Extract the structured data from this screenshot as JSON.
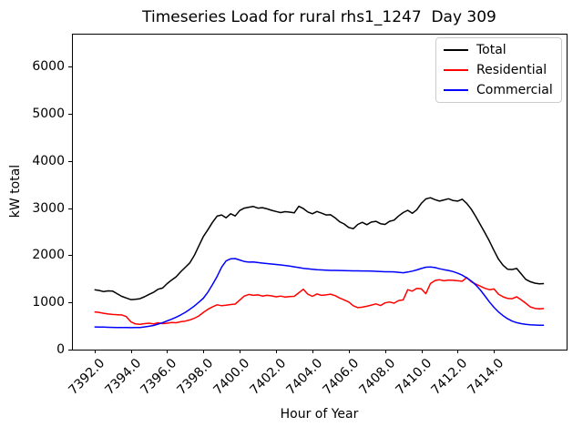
{
  "title": "Timeseries Load for rural rhs1_1247  Day 309",
  "xlabel": "Hour of Year",
  "ylabel": "kW total",
  "legend": {
    "position": "upper right",
    "entries": [
      {
        "label": "Total",
        "color": "#000000"
      },
      {
        "label": "Residential",
        "color": "#ff0000"
      },
      {
        "label": "Commercial",
        "color": "#0000ff"
      }
    ]
  },
  "axes": {
    "xlim": [
      7390.76,
      7418.0
    ],
    "ylim": [
      0,
      6700
    ],
    "grid": false,
    "xticks": [
      7392,
      7394,
      7396,
      7398,
      7400,
      7402,
      7404,
      7406,
      7408,
      7410,
      7412,
      7414
    ],
    "xtick_labels": [
      "7392.0",
      "7394.0",
      "7396.0",
      "7398.0",
      "7400.0",
      "7402.0",
      "7404.0",
      "7406.0",
      "7408.0",
      "7410.0",
      "7412.0",
      "7414.0"
    ],
    "yticks": [
      0,
      1000,
      2000,
      3000,
      4000,
      5000,
      6000
    ],
    "ytick_labels": [
      "0",
      "1000",
      "2000",
      "3000",
      "4000",
      "5000",
      "6000"
    ]
  },
  "chart_data": {
    "type": "line",
    "title": "Timeseries Load for rural rhs1_1247  Day 309",
    "xlabel": "Hour of Year",
    "ylabel": "kW total",
    "x": [
      7392.0,
      7392.25,
      7392.5,
      7392.75,
      7393.0,
      7393.25,
      7393.5,
      7393.75,
      7394.0,
      7394.25,
      7394.5,
      7394.75,
      7395.0,
      7395.25,
      7395.5,
      7395.75,
      7396.0,
      7396.25,
      7396.5,
      7396.75,
      7397.0,
      7397.25,
      7397.5,
      7397.75,
      7398.0,
      7398.25,
      7398.5,
      7398.75,
      7399.0,
      7399.25,
      7399.5,
      7399.75,
      7400.0,
      7400.25,
      7400.5,
      7400.75,
      7401.0,
      7401.25,
      7401.5,
      7401.75,
      7402.0,
      7402.25,
      7402.5,
      7402.75,
      7403.0,
      7403.25,
      7403.5,
      7403.75,
      7404.0,
      7404.25,
      7404.5,
      7404.75,
      7405.0,
      7405.25,
      7405.5,
      7405.75,
      7406.0,
      7406.25,
      7406.5,
      7406.75,
      7407.0,
      7407.25,
      7407.5,
      7407.75,
      7408.0,
      7408.25,
      7408.5,
      7408.75,
      7409.0,
      7409.25,
      7409.5,
      7409.75,
      7410.0,
      7410.25,
      7410.5,
      7410.75,
      7411.0,
      7411.25,
      7411.5,
      7411.75,
      7412.0,
      7412.25,
      7412.5,
      7412.75,
      7413.0,
      7413.25,
      7413.5,
      7413.75,
      7414.0,
      7414.25,
      7414.5,
      7414.75,
      7415.0,
      7415.25,
      7415.5,
      7415.75,
      7416.0,
      7416.25,
      7416.5,
      7416.75
    ],
    "series": [
      {
        "name": "Total",
        "color": "#000000",
        "values": [
          1270,
          1255,
          1230,
          1245,
          1240,
          1185,
          1130,
          1095,
          1060,
          1065,
          1080,
          1120,
          1170,
          1215,
          1280,
          1305,
          1400,
          1475,
          1545,
          1650,
          1745,
          1840,
          2000,
          2200,
          2400,
          2545,
          2700,
          2830,
          2855,
          2795,
          2880,
          2835,
          2950,
          3000,
          3020,
          3035,
          3000,
          3010,
          2985,
          2955,
          2930,
          2905,
          2925,
          2915,
          2900,
          3040,
          2990,
          2920,
          2880,
          2930,
          2895,
          2855,
          2860,
          2795,
          2710,
          2665,
          2590,
          2565,
          2655,
          2700,
          2650,
          2705,
          2720,
          2670,
          2655,
          2720,
          2745,
          2835,
          2905,
          2955,
          2890,
          2965,
          3100,
          3195,
          3220,
          3180,
          3150,
          3175,
          3200,
          3160,
          3150,
          3190,
          3100,
          2980,
          2820,
          2650,
          2480,
          2300,
          2100,
          1920,
          1790,
          1705,
          1700,
          1720,
          1605,
          1490,
          1440,
          1410,
          1395,
          1400
        ]
      },
      {
        "name": "Residential",
        "color": "#ff0000",
        "values": [
          800,
          790,
          770,
          755,
          745,
          740,
          735,
          700,
          590,
          545,
          535,
          550,
          560,
          545,
          570,
          550,
          560,
          575,
          570,
          590,
          605,
          630,
          665,
          715,
          790,
          855,
          905,
          950,
          930,
          940,
          955,
          965,
          1050,
          1135,
          1170,
          1150,
          1160,
          1135,
          1150,
          1140,
          1120,
          1135,
          1115,
          1125,
          1130,
          1205,
          1280,
          1175,
          1130,
          1180,
          1150,
          1160,
          1175,
          1145,
          1095,
          1055,
          1010,
          930,
          890,
          900,
          920,
          945,
          970,
          935,
          990,
          1010,
          985,
          1040,
          1055,
          1270,
          1240,
          1300,
          1290,
          1185,
          1400,
          1465,
          1480,
          1460,
          1475,
          1470,
          1460,
          1450,
          1530,
          1440,
          1390,
          1345,
          1300,
          1270,
          1285,
          1175,
          1120,
          1085,
          1080,
          1120,
          1055,
          985,
          905,
          875,
          865,
          870
        ]
      },
      {
        "name": "Commercial",
        "color": "#0000ff",
        "values": [
          480,
          478,
          476,
          474,
          472,
          470,
          468,
          467,
          466,
          467,
          470,
          480,
          495,
          512,
          540,
          572,
          608,
          645,
          688,
          735,
          790,
          855,
          925,
          1005,
          1090,
          1220,
          1380,
          1550,
          1750,
          1880,
          1925,
          1930,
          1900,
          1870,
          1855,
          1860,
          1845,
          1835,
          1825,
          1815,
          1805,
          1795,
          1785,
          1770,
          1755,
          1740,
          1725,
          1715,
          1705,
          1695,
          1690,
          1685,
          1680,
          1680,
          1678,
          1676,
          1672,
          1670,
          1670,
          1668,
          1668,
          1665,
          1660,
          1655,
          1650,
          1650,
          1648,
          1640,
          1630,
          1645,
          1665,
          1690,
          1720,
          1748,
          1752,
          1740,
          1715,
          1695,
          1678,
          1655,
          1620,
          1580,
          1520,
          1455,
          1370,
          1265,
          1140,
          1010,
          895,
          800,
          720,
          655,
          605,
          572,
          550,
          537,
          528,
          522,
          518,
          517
        ]
      }
    ]
  }
}
